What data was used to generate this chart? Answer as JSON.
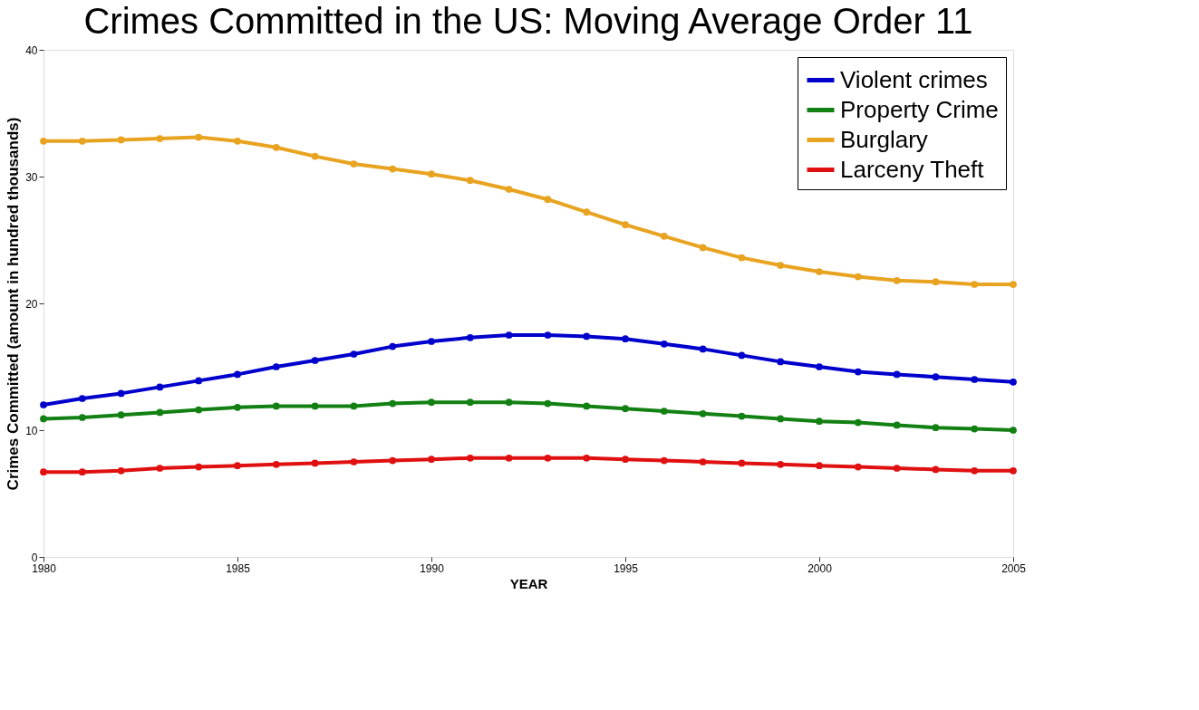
{
  "chart_data": {
    "type": "line",
    "title": "Crimes Committed in the US: Moving Average Order 11",
    "xlabel": "YEAR",
    "ylabel": "Crimes Committed (amount in hundred thousands)",
    "x": [
      1980,
      1981,
      1982,
      1983,
      1984,
      1985,
      1986,
      1987,
      1988,
      1989,
      1990,
      1991,
      1992,
      1993,
      1994,
      1995,
      1996,
      1997,
      1998,
      1999,
      2000,
      2001,
      2002,
      2003,
      2004,
      2005
    ],
    "series": [
      {
        "name": "Violent crimes",
        "color": "#0000cc",
        "values": [
          12.0,
          12.5,
          12.9,
          13.4,
          13.9,
          14.4,
          15.0,
          15.5,
          16.0,
          16.6,
          17.0,
          17.3,
          17.5,
          17.5,
          17.4,
          17.2,
          16.8,
          16.4,
          15.9,
          15.4,
          15.0,
          14.6,
          14.4,
          14.2,
          14.0,
          13.8
        ]
      },
      {
        "name": "Property Crime",
        "color": "#128012",
        "values": [
          10.9,
          11.0,
          11.2,
          11.4,
          11.6,
          11.8,
          11.9,
          11.9,
          11.9,
          12.1,
          12.2,
          12.2,
          12.2,
          12.1,
          11.9,
          11.7,
          11.5,
          11.3,
          11.1,
          10.9,
          10.7,
          10.6,
          10.4,
          10.2,
          10.1,
          10.0
        ]
      },
      {
        "name": "Burglary",
        "color": "#e8a320",
        "values": [
          32.8,
          32.8,
          32.9,
          33.0,
          33.1,
          32.8,
          32.3,
          31.6,
          31.0,
          30.6,
          30.2,
          29.7,
          29.0,
          28.2,
          27.2,
          26.2,
          25.3,
          24.4,
          23.6,
          23.0,
          22.5,
          22.1,
          21.8,
          21.7,
          21.5,
          21.5
        ]
      },
      {
        "name": "Larceny Theft",
        "color": "#e01010",
        "values": [
          6.7,
          6.7,
          6.8,
          7.0,
          7.1,
          7.2,
          7.3,
          7.4,
          7.5,
          7.6,
          7.7,
          7.8,
          7.8,
          7.8,
          7.8,
          7.7,
          7.6,
          7.5,
          7.4,
          7.3,
          7.2,
          7.1,
          7.0,
          6.9,
          6.8,
          6.8
        ]
      }
    ],
    "xlim": [
      1980,
      2005
    ],
    "xticks": [
      1980,
      1985,
      1990,
      1995,
      2000,
      2005
    ],
    "ylim": [
      0,
      40
    ],
    "yticks": [
      0,
      10,
      20,
      30,
      40
    ],
    "grid": false,
    "legend": "top right",
    "marker": "circle",
    "line_style": "solid"
  }
}
